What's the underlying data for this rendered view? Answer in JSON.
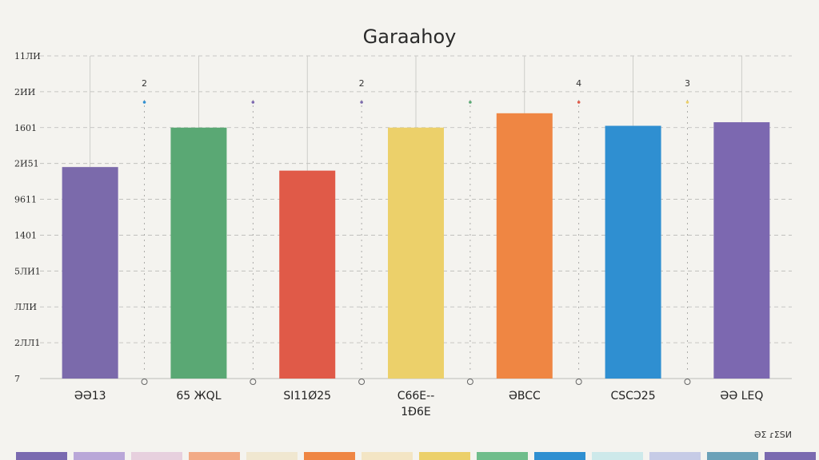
{
  "chart_data": {
    "type": "bar",
    "title": "Garaahoy",
    "y_ticks": [
      "7",
      "2ЛЛ1",
      "ЛЛИ",
      "5ЛИ1",
      "1401",
      "9611",
      "2И51",
      "1601",
      "2ИИ",
      "11ЛИ"
    ],
    "categories": [
      "ƏƏ13",
      "65 ЖQL",
      "SI11Ø25",
      "C66E- 1Ð6E",
      "ƏBCC",
      "CSCƆ25",
      "ƏƏ LEQ"
    ],
    "values": [
      5.9,
      7.0,
      5.8,
      7.0,
      7.4,
      7.05,
      7.15
    ],
    "ylim": [
      0,
      9
    ],
    "top_labels": [
      "2",
      "2",
      "4",
      "3"
    ],
    "bottom_corner_label": "ƏΣ ɾΣЅИ",
    "colors": [
      "#7b6aab",
      "#5aa874",
      "#e05a48",
      "#ecd06a",
      "#ef8643",
      "#2f8fd1",
      "#7c68b0"
    ],
    "swatches": [
      "#7a6ab0",
      "#b9a7d8",
      "#e7d0de",
      "#f2aa86",
      "#f0e7d0",
      "#ef8643",
      "#f3e5c4",
      "#ecd06a",
      "#6fbd8b",
      "#2f8fd1",
      "#cde9ea",
      "#c6cbe6",
      "#6ba1b8",
      "#7a6ab0"
    ],
    "grid": true
  }
}
